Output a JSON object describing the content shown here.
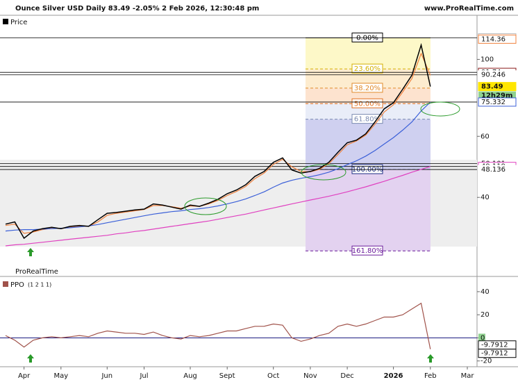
{
  "header": {
    "title": "Ounce Silver USD Daily 83.49 -2.05% 2 Feb 2026, 12:30:48 pm",
    "site": "www.ProRealTime.com"
  },
  "chart_data": [
    {
      "type": "line",
      "legend": "Price",
      "watermark": "ProRealTime",
      "log": true,
      "categories": [
        null,
        null,
        "Apr",
        null,
        null,
        null,
        "May",
        null,
        null,
        null,
        null,
        "Jun",
        null,
        null,
        null,
        "Jul",
        null,
        null,
        null,
        null,
        "Aug",
        null,
        null,
        null,
        "Sept",
        null,
        null,
        null,
        null,
        "Oct",
        null,
        null,
        null,
        "Nov",
        null,
        null,
        null,
        "Dec",
        null,
        null,
        null,
        null,
        "2026",
        null,
        null,
        null,
        "Feb",
        null,
        null,
        null,
        "Mar"
      ],
      "ylim": [
        24,
        134
      ],
      "yticks": [
        100,
        60,
        40
      ],
      "series": [
        {
          "color": "#f0803c",
          "values": [
            33.2,
            33.5,
            31.5,
            31.8,
            32.3,
            32.6,
            32.5,
            32.8,
            33,
            33,
            34,
            35.5,
            36,
            36.3,
            36.6,
            36.9,
            37.9,
            37.9,
            37.6,
            37.2,
            37.8,
            37.7,
            38.3,
            39.2,
            40.5,
            41.6,
            43,
            45.3,
            47,
            49.8,
            51.5,
            49,
            47.5,
            47.4,
            48.2,
            50,
            53.2,
            56.7,
            58.2,
            60.5,
            65,
            70.5,
            74,
            80.5,
            88,
            104,
            90,
            null,
            null,
            null,
            null
          ]
        },
        {
          "color": "#3a5fd8",
          "values": [
            32,
            32.2,
            32.3,
            32.3,
            32.4,
            32.5,
            32.6,
            32.7,
            32.9,
            33.1,
            33.4,
            33.8,
            34.2,
            34.6,
            35,
            35.4,
            35.8,
            36.1,
            36.4,
            36.6,
            36.9,
            37.1,
            37.4,
            37.8,
            38.3,
            38.9,
            39.6,
            40.5,
            41.5,
            42.8,
            44,
            44.8,
            45.4,
            45.9,
            46.5,
            47.3,
            48.4,
            49.7,
            51,
            52.6,
            54.6,
            57,
            59.5,
            62.5,
            66,
            71,
            75.3,
            null,
            null,
            null,
            null
          ]
        },
        {
          "color": "#e040c0",
          "values": [
            29,
            29.2,
            29.3,
            29.5,
            29.7,
            29.9,
            30.1,
            30.3,
            30.5,
            30.7,
            30.9,
            31.1,
            31.4,
            31.6,
            31.9,
            32.1,
            32.4,
            32.7,
            33,
            33.3,
            33.6,
            33.9,
            34.2,
            34.6,
            35,
            35.4,
            35.8,
            36.3,
            36.8,
            37.3,
            37.8,
            38.3,
            38.8,
            39.3,
            39.8,
            40.3,
            40.9,
            41.5,
            42.2,
            42.9,
            43.7,
            44.5,
            45.4,
            46.3,
            47.3,
            48.2,
            49.1,
            null,
            null,
            null,
            null
          ]
        },
        {
          "color": "#000000",
          "values": [
            33.5,
            34,
            30.5,
            32,
            32.5,
            32.8,
            32.5,
            33,
            33.2,
            33,
            34.5,
            36,
            36.2,
            36.5,
            36.8,
            37,
            38.3,
            38,
            37.5,
            37,
            38,
            37.7,
            38.5,
            39.5,
            41,
            42,
            43.5,
            46,
            47.5,
            50.5,
            52,
            48,
            47,
            47.5,
            48.5,
            50.5,
            54,
            57.5,
            58.5,
            61,
            66,
            72,
            75,
            82,
            90,
            110,
            83.49,
            null,
            null,
            null,
            null
          ]
        }
      ],
      "price_levels": [
        {
          "value": 115.37,
          "color": "#bbbbbb",
          "line": true
        },
        {
          "value": 114.36,
          "color": "#f0803c",
          "line": false
        },
        {
          "value": 91.74,
          "color": "#8b1a1a",
          "line": true
        },
        {
          "value": 90.246,
          "color": "#ffffff",
          "line": true
        },
        {
          "value": 83.49,
          "color": "#ffe600",
          "line": false
        },
        {
          "value": 75.332,
          "color": "#3a5fd8",
          "line": true
        },
        {
          "value": 50.101,
          "color": "#ffffff",
          "line": true
        },
        {
          "value": 49.119,
          "color": "#e040c0",
          "line": true
        },
        {
          "value": 48.136,
          "color": "#ffffff",
          "line": true
        }
      ],
      "countdown": {
        "label": "12h29m",
        "color": "#8fd18f"
      },
      "fibonacci": {
        "levels": [
          {
            "value": 0,
            "label": "0.00%",
            "color": "#000000",
            "zone": "#fdf8c8"
          },
          {
            "value": 23.6,
            "label": "23.60%",
            "color": "#d4b000",
            "zone": "#fdeccf"
          },
          {
            "value": 38.2,
            "label": "38.20%",
            "color": "#e08a2a",
            "zone": "#fde3cf"
          },
          {
            "value": 50,
            "label": "50.00%",
            "color": "#e07020",
            "zone": "#e9edf8"
          },
          {
            "value": 61.8,
            "label": "61.80%",
            "color": "#7a8ab0",
            "zone": "#cfd0f0"
          },
          {
            "value": 100,
            "label": "100.00%",
            "color": "#1a2a80",
            "zone": "#e3d2f0"
          },
          {
            "value": 161.8,
            "label": "161.80%",
            "color": "#6a1a9a",
            "zone": null
          }
        ]
      }
    },
    {
      "type": "line",
      "legend": "PPO",
      "params": "(1 2 1 1)",
      "ylim": [
        -25,
        52
      ],
      "yticks": [
        40,
        20,
        0,
        -20
      ],
      "series": [
        {
          "color": "#a0524a",
          "values": [
            2,
            -2,
            -8,
            -2,
            0,
            1,
            0,
            1,
            2,
            1,
            4,
            6,
            5,
            4,
            4,
            3,
            5,
            2,
            0,
            -1,
            2,
            1,
            2,
            4,
            6,
            6,
            8,
            10,
            10,
            12,
            11,
            0,
            -3,
            -1,
            2,
            4,
            10,
            12,
            10,
            12,
            15,
            18,
            18,
            20,
            25,
            30,
            -9.7912,
            null,
            null,
            null,
            null
          ]
        }
      ],
      "last_labels": [
        -9.7912,
        -9.7912
      ]
    }
  ]
}
